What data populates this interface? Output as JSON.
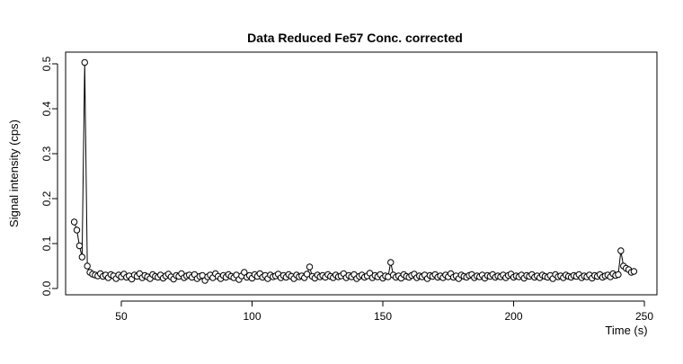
{
  "chart_data": {
    "type": "scatter",
    "title": "Data Reduced Fe57 Conc. corrected",
    "xlabel": "Time (s)",
    "ylabel": "Signal intensity (cps)",
    "x": [
      32,
      33,
      34,
      35,
      36,
      37,
      38,
      39,
      40,
      41,
      42,
      43,
      44,
      45,
      46,
      47,
      48,
      49,
      50,
      51,
      52,
      53,
      54,
      55,
      56,
      57,
      58,
      59,
      60,
      61,
      62,
      63,
      64,
      65,
      66,
      67,
      68,
      69,
      70,
      71,
      72,
      73,
      74,
      75,
      76,
      77,
      78,
      79,
      80,
      81,
      82,
      83,
      84,
      85,
      86,
      87,
      88,
      89,
      90,
      91,
      92,
      93,
      94,
      95,
      96,
      97,
      98,
      99,
      100,
      101,
      102,
      103,
      104,
      105,
      106,
      107,
      108,
      109,
      110,
      111,
      112,
      113,
      114,
      115,
      116,
      117,
      118,
      119,
      120,
      121,
      122,
      123,
      124,
      125,
      126,
      127,
      128,
      129,
      130,
      131,
      132,
      133,
      134,
      135,
      136,
      137,
      138,
      139,
      140,
      141,
      142,
      143,
      144,
      145,
      146,
      147,
      148,
      149,
      150,
      151,
      152,
      153,
      154,
      155,
      156,
      157,
      158,
      159,
      160,
      161,
      162,
      163,
      164,
      165,
      166,
      167,
      168,
      169,
      170,
      171,
      172,
      173,
      174,
      175,
      176,
      177,
      178,
      179,
      180,
      181,
      182,
      183,
      184,
      185,
      186,
      187,
      188,
      189,
      190,
      191,
      192,
      193,
      194,
      195,
      196,
      197,
      198,
      199,
      200,
      201,
      202,
      203,
      204,
      205,
      206,
      207,
      208,
      209,
      210,
      211,
      212,
      213,
      214,
      215,
      216,
      217,
      218,
      219,
      220,
      221,
      222,
      223,
      224,
      225,
      226,
      227,
      228,
      229,
      230,
      231,
      232,
      233,
      234,
      235,
      236,
      237,
      238,
      239,
      240,
      241,
      242,
      243,
      244,
      245,
      246
    ],
    "values": [
      0.148,
      0.13,
      0.095,
      0.07,
      0.503,
      0.05,
      0.036,
      0.032,
      0.03,
      0.028,
      0.033,
      0.027,
      0.03,
      0.024,
      0.031,
      0.028,
      0.022,
      0.03,
      0.026,
      0.032,
      0.025,
      0.028,
      0.021,
      0.03,
      0.027,
      0.033,
      0.024,
      0.029,
      0.026,
      0.022,
      0.031,
      0.027,
      0.025,
      0.03,
      0.023,
      0.028,
      0.032,
      0.026,
      0.021,
      0.029,
      0.027,
      0.033,
      0.024,
      0.028,
      0.03,
      0.025,
      0.031,
      0.022,
      0.027,
      0.029,
      0.018,
      0.026,
      0.03,
      0.024,
      0.033,
      0.027,
      0.022,
      0.029,
      0.025,
      0.031,
      0.027,
      0.024,
      0.03,
      0.02,
      0.028,
      0.036,
      0.025,
      0.029,
      0.023,
      0.031,
      0.027,
      0.033,
      0.025,
      0.029,
      0.022,
      0.03,
      0.026,
      0.028,
      0.032,
      0.024,
      0.029,
      0.025,
      0.031,
      0.027,
      0.022,
      0.03,
      0.026,
      0.028,
      0.024,
      0.032,
      0.048,
      0.027,
      0.023,
      0.03,
      0.026,
      0.029,
      0.025,
      0.031,
      0.027,
      0.024,
      0.03,
      0.026,
      0.028,
      0.033,
      0.024,
      0.029,
      0.026,
      0.031,
      0.022,
      0.027,
      0.03,
      0.025,
      0.028,
      0.034,
      0.024,
      0.029,
      0.026,
      0.031,
      0.023,
      0.028,
      0.026,
      0.058,
      0.03,
      0.025,
      0.028,
      0.023,
      0.031,
      0.027,
      0.025,
      0.029,
      0.032,
      0.024,
      0.028,
      0.026,
      0.03,
      0.022,
      0.029,
      0.027,
      0.031,
      0.025,
      0.028,
      0.024,
      0.03,
      0.026,
      0.033,
      0.025,
      0.028,
      0.022,
      0.03,
      0.027,
      0.025,
      0.029,
      0.031,
      0.024,
      0.028,
      0.026,
      0.03,
      0.023,
      0.029,
      0.027,
      0.031,
      0.025,
      0.028,
      0.026,
      0.03,
      0.024,
      0.029,
      0.032,
      0.025,
      0.028,
      0.026,
      0.03,
      0.023,
      0.029,
      0.027,
      0.031,
      0.025,
      0.028,
      0.024,
      0.03,
      0.027,
      0.025,
      0.029,
      0.022,
      0.031,
      0.026,
      0.028,
      0.024,
      0.03,
      0.027,
      0.025,
      0.029,
      0.027,
      0.031,
      0.024,
      0.028,
      0.026,
      0.03,
      0.023,
      0.029,
      0.027,
      0.031,
      0.025,
      0.028,
      0.03,
      0.026,
      0.033,
      0.029,
      0.031,
      0.084,
      0.05,
      0.045,
      0.042,
      0.036,
      0.038
    ],
    "color": "#000000",
    "xlim": [
      28.7,
      254.8
    ],
    "ylim": [
      -0.014,
      0.526
    ],
    "xticks": [
      50,
      100,
      150,
      200,
      250
    ],
    "yticks": [
      {
        "value": 0,
        "label": "0.0"
      },
      0.1,
      0.2,
      0.3,
      0.4,
      0.5
    ]
  }
}
